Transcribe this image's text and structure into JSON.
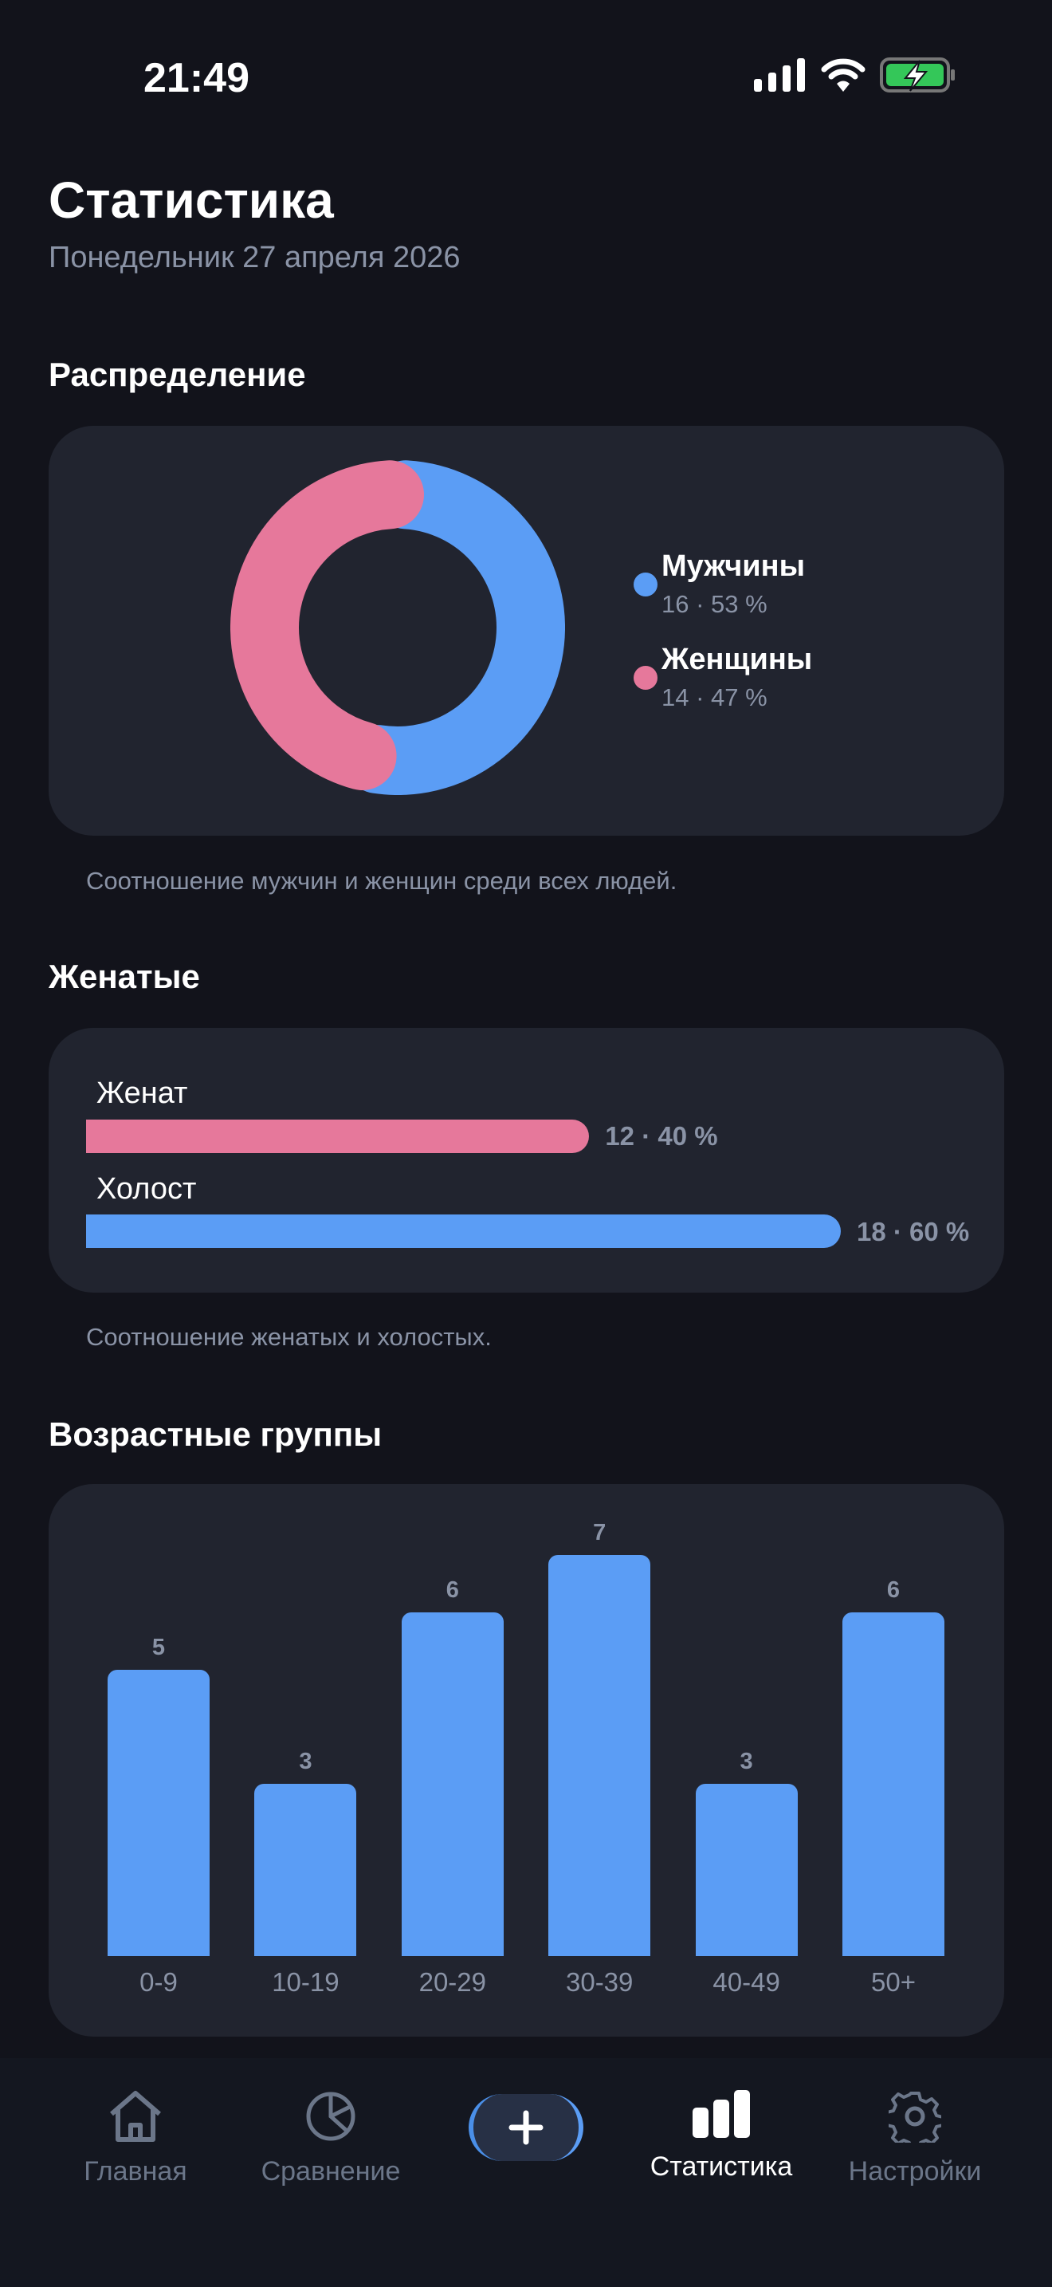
{
  "status": {
    "time": "21:49"
  },
  "header": {
    "title": "Статистика",
    "subtitle": "Понедельник 27 апреля 2026"
  },
  "distribution": {
    "title": "Распределение",
    "caption": "Соотношение мужчин и женщин среди всех людей.",
    "items": [
      {
        "label": "Мужчины",
        "value": "16 · 53 %",
        "count": 16,
        "color": "#5b9df5"
      },
      {
        "label": "Женщины",
        "value": "14 · 47 %",
        "count": 14,
        "color": "#e6789b"
      }
    ]
  },
  "married": {
    "title": "Женатые",
    "caption": "Соотношение женатых и холостых.",
    "items": [
      {
        "label": "Женат",
        "value": "12 · 40 %",
        "percent": 40,
        "color": "#e6789b"
      },
      {
        "label": "Холост",
        "value": "18 · 60 %",
        "percent": 60,
        "color": "#5b9df5"
      }
    ]
  },
  "chart_data": {
    "type": "bar",
    "title": "Возрастные группы",
    "categories": [
      "0-9",
      "10-19",
      "20-29",
      "30-39",
      "40-49",
      "50+"
    ],
    "values": [
      5,
      3,
      6,
      7,
      3,
      6
    ],
    "ylim": [
      0,
      7
    ],
    "color": "#5b9df5"
  },
  "nav": {
    "items": [
      {
        "label": "Главная"
      },
      {
        "label": "Сравнение"
      },
      {
        "label": ""
      },
      {
        "label": "Статистика"
      },
      {
        "label": "Настройки"
      }
    ]
  }
}
